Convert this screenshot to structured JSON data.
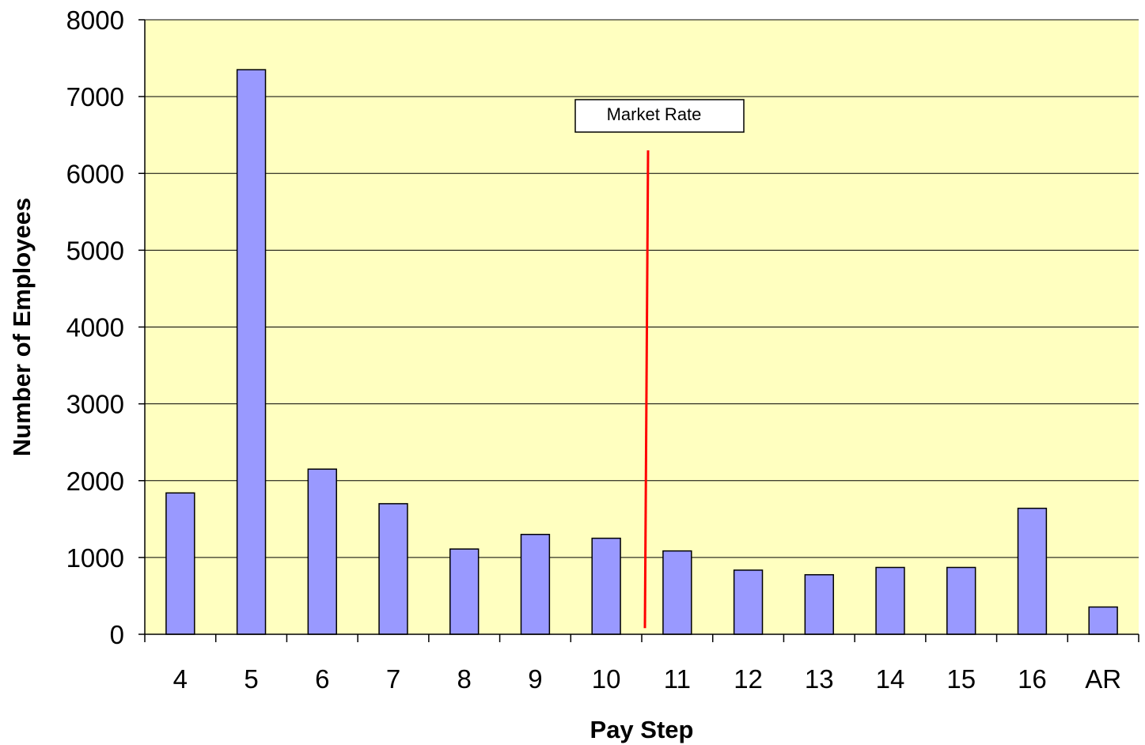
{
  "chart_data": {
    "type": "bar",
    "categories": [
      "4",
      "5",
      "6",
      "7",
      "8",
      "9",
      "10",
      "11",
      "12",
      "13",
      "14",
      "15",
      "16",
      "AR"
    ],
    "values": [
      1840,
      7350,
      2150,
      1700,
      1110,
      1300,
      1250,
      1085,
      835,
      775,
      870,
      870,
      1640,
      355
    ],
    "title": "",
    "xlabel": "Pay Step",
    "ylabel": "Number of Employees",
    "ylim": [
      0,
      8000
    ],
    "yticks": [
      "0",
      "1000",
      "2000",
      "3000",
      "4000",
      "5000",
      "6000",
      "7000",
      "8000"
    ],
    "grid": true,
    "legend": "none",
    "colors": {
      "plot_background": "#FFFFC0",
      "bar_fill": "#9999FF",
      "bar_stroke": "#000000",
      "marker_line": "#FF0000",
      "gridline": "#000000"
    },
    "annotations": [
      {
        "text": "Market Rate",
        "between_categories": [
          "10",
          "11"
        ],
        "line_y_range": [
          80,
          6300
        ]
      }
    ]
  }
}
